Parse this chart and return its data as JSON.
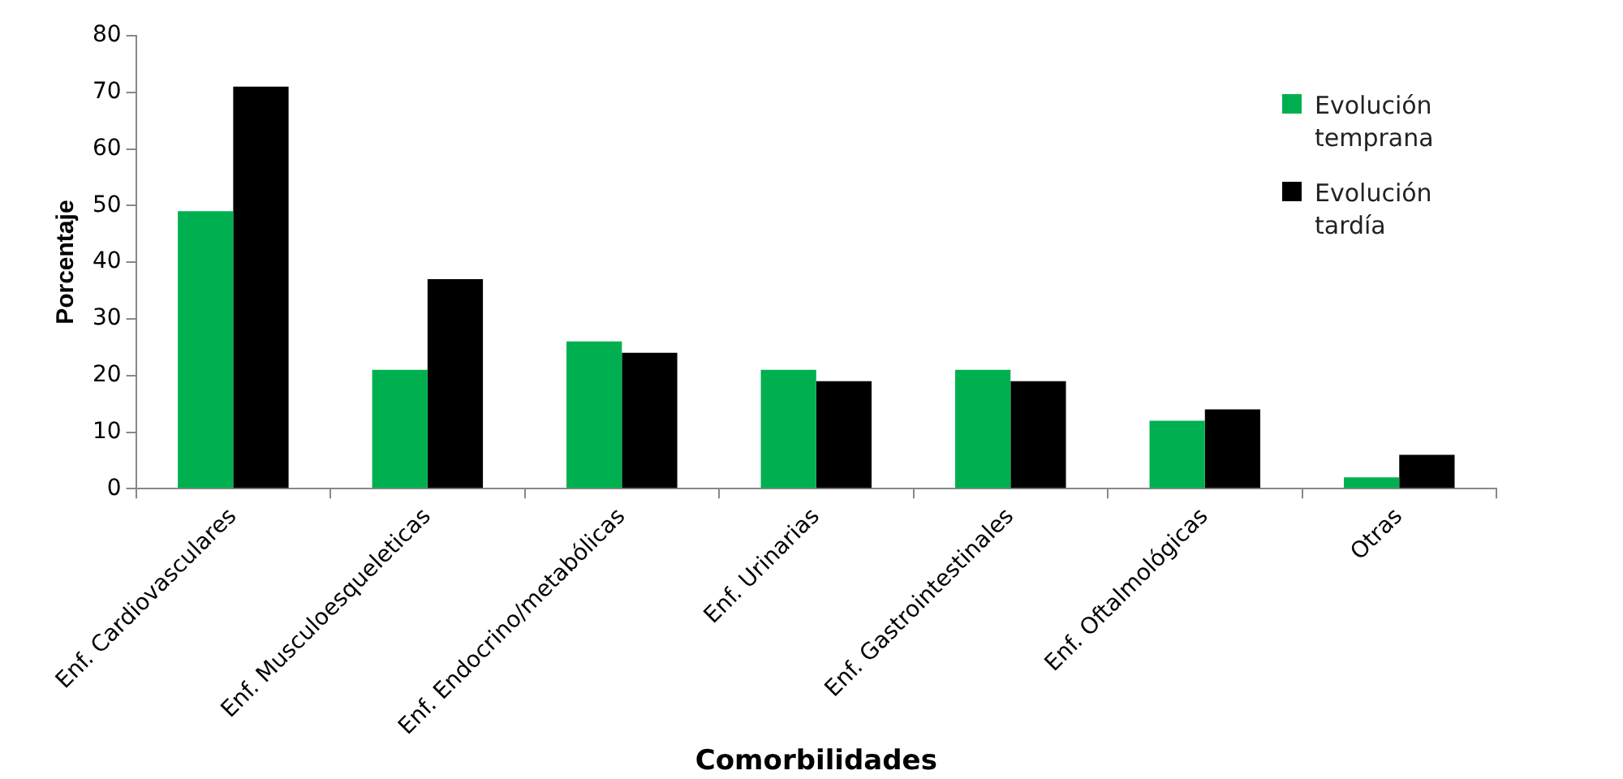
{
  "chart_data": {
    "type": "bar",
    "xlabel": "Comorbilidades",
    "ylabel": "Porcentaje",
    "categories": [
      "Enf. Cardiovasculares",
      "Enf. Musculoesqueleticas",
      "Enf. Endocrino/metabólicas",
      "Enf. Urinarias",
      "Enf. Gastrointestinales",
      "Enf. Oftalmológicas",
      "Otras"
    ],
    "series": [
      {
        "name": "Evolución temprana",
        "color": "#00b050",
        "values": [
          49,
          21,
          26,
          21,
          21,
          12,
          2
        ]
      },
      {
        "name": "Evolución tardía",
        "color": "#000000",
        "values": [
          71,
          37,
          24,
          19,
          19,
          14,
          6
        ]
      }
    ],
    "ylim": [
      0,
      80
    ],
    "yticks": [
      0,
      10,
      20,
      30,
      40,
      50,
      60,
      70,
      80
    ],
    "grid": false,
    "legend": "top right"
  }
}
